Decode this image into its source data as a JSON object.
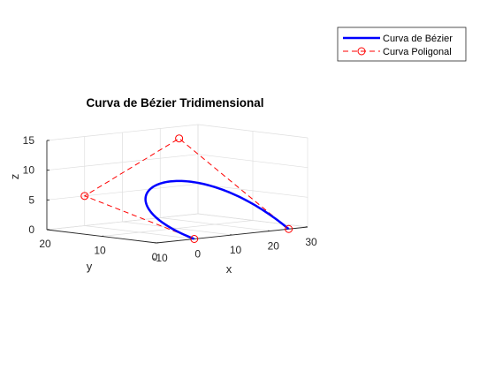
{
  "chart_data": {
    "type": "line",
    "title": "Curva de Bézier Tridimensional",
    "xlabel": "x",
    "ylabel": "y",
    "zlabel": "z",
    "xlim": [
      -10,
      30
    ],
    "ylim": [
      0,
      20
    ],
    "zlim": [
      0,
      15
    ],
    "x_ticks": [
      "-10",
      "0",
      "10",
      "20",
      "30"
    ],
    "y_ticks": [
      "0",
      "10",
      "20"
    ],
    "z_ticks": [
      "0",
      "5",
      "10",
      "15"
    ],
    "grid": true,
    "legend_position": "top-right",
    "series": [
      {
        "name": "Curva de Bézier",
        "style": "solid",
        "color": "#0000ff",
        "control_points": [
          [
            0,
            0,
            0
          ],
          [
            0,
            20,
            5
          ],
          [
            25,
            20,
            13
          ],
          [
            25,
            0,
            0
          ]
        ]
      },
      {
        "name": "Curva Poligonal",
        "style": "dashed",
        "marker": "circle",
        "color": "#ff0000",
        "points": [
          [
            0,
            0,
            0
          ],
          [
            0,
            20,
            5
          ],
          [
            25,
            20,
            13
          ],
          [
            25,
            0,
            0
          ]
        ]
      }
    ]
  }
}
